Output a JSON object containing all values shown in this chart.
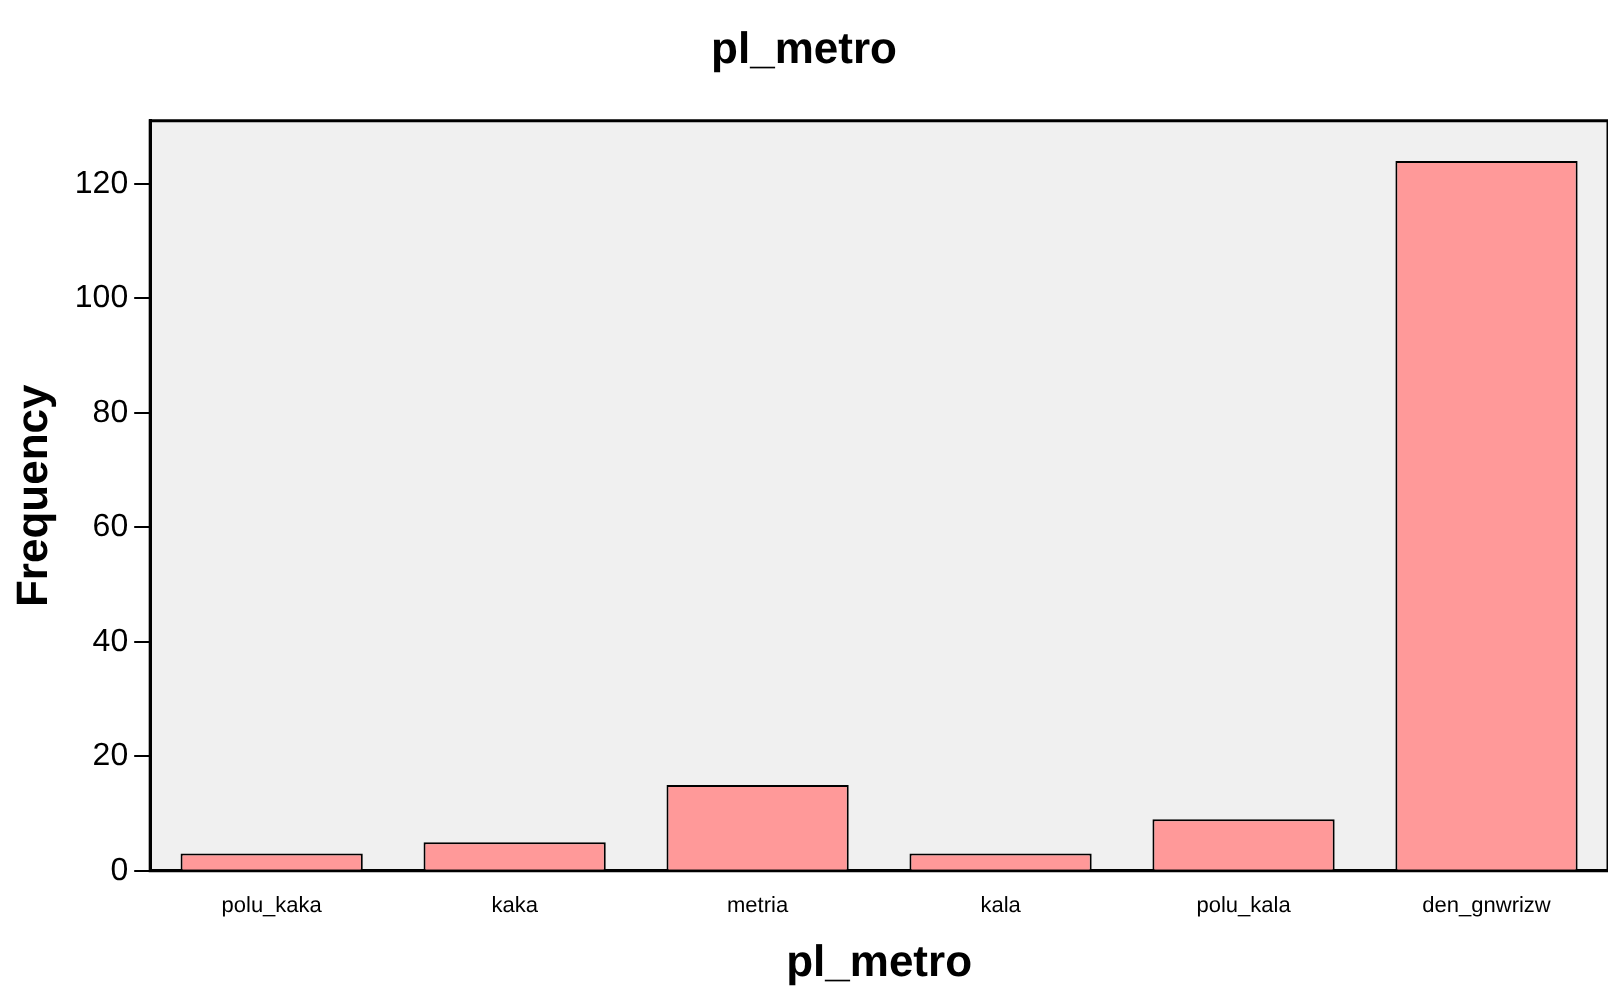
{
  "chart_data": {
    "type": "bar",
    "title": "pl_metro",
    "xlabel": "pl_metro",
    "ylabel": "Frequency",
    "categories": [
      "polu_kaka",
      "kaka",
      "metria",
      "kala",
      "polu_kala",
      "den_gnwrizw"
    ],
    "values": [
      3,
      5,
      15,
      3,
      9,
      124
    ],
    "color": "#ff9999",
    "ylim": [
      0,
      131
    ],
    "yticks": [
      0,
      20,
      40,
      60,
      80,
      100,
      120
    ],
    "grid": false,
    "legend": false
  }
}
